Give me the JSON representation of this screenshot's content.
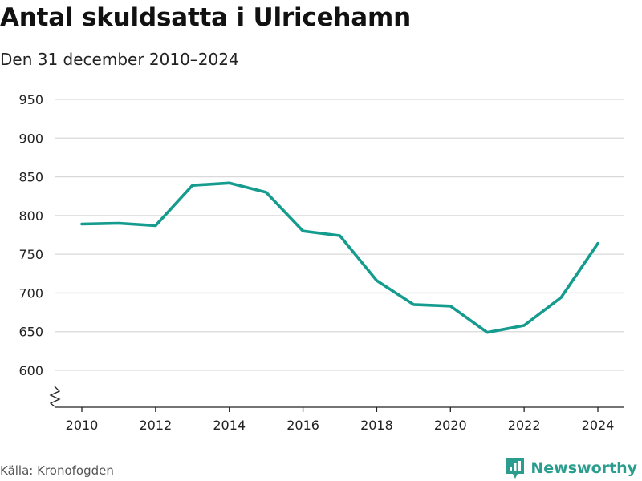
{
  "title": "Antal skuldsatta i Ulricehamn",
  "subtitle": "Den 31 december 2010–2024",
  "source": "Källa: Kronofogden",
  "brand": {
    "name": "Newsworthy",
    "icon": "bar-chart-logo-icon"
  },
  "colors": {
    "line": "#169b8f",
    "grid": "#d9d9d9",
    "axis": "#222222",
    "brand": "#2a9d8f"
  },
  "chart_data": {
    "type": "line",
    "title": "Antal skuldsatta i Ulricehamn",
    "subtitle": "Den 31 december 2010–2024",
    "xlabel": "",
    "ylabel": "",
    "x": [
      2010,
      2011,
      2012,
      2013,
      2014,
      2015,
      2016,
      2017,
      2018,
      2019,
      2020,
      2021,
      2022,
      2023,
      2024
    ],
    "series": [
      {
        "name": "Antal skuldsatta",
        "values": [
          789,
          790,
          787,
          839,
          842,
          830,
          780,
          774,
          716,
          685,
          683,
          649,
          658,
          694,
          764
        ]
      }
    ],
    "x_ticks": [
      2010,
      2012,
      2014,
      2016,
      2018,
      2020,
      2022,
      2024
    ],
    "y_ticks": [
      600,
      650,
      700,
      750,
      800,
      850,
      900,
      950
    ],
    "ylim": [
      560,
      960
    ],
    "xlim": [
      2010,
      2024
    ],
    "grid": true,
    "axis_break": true
  }
}
